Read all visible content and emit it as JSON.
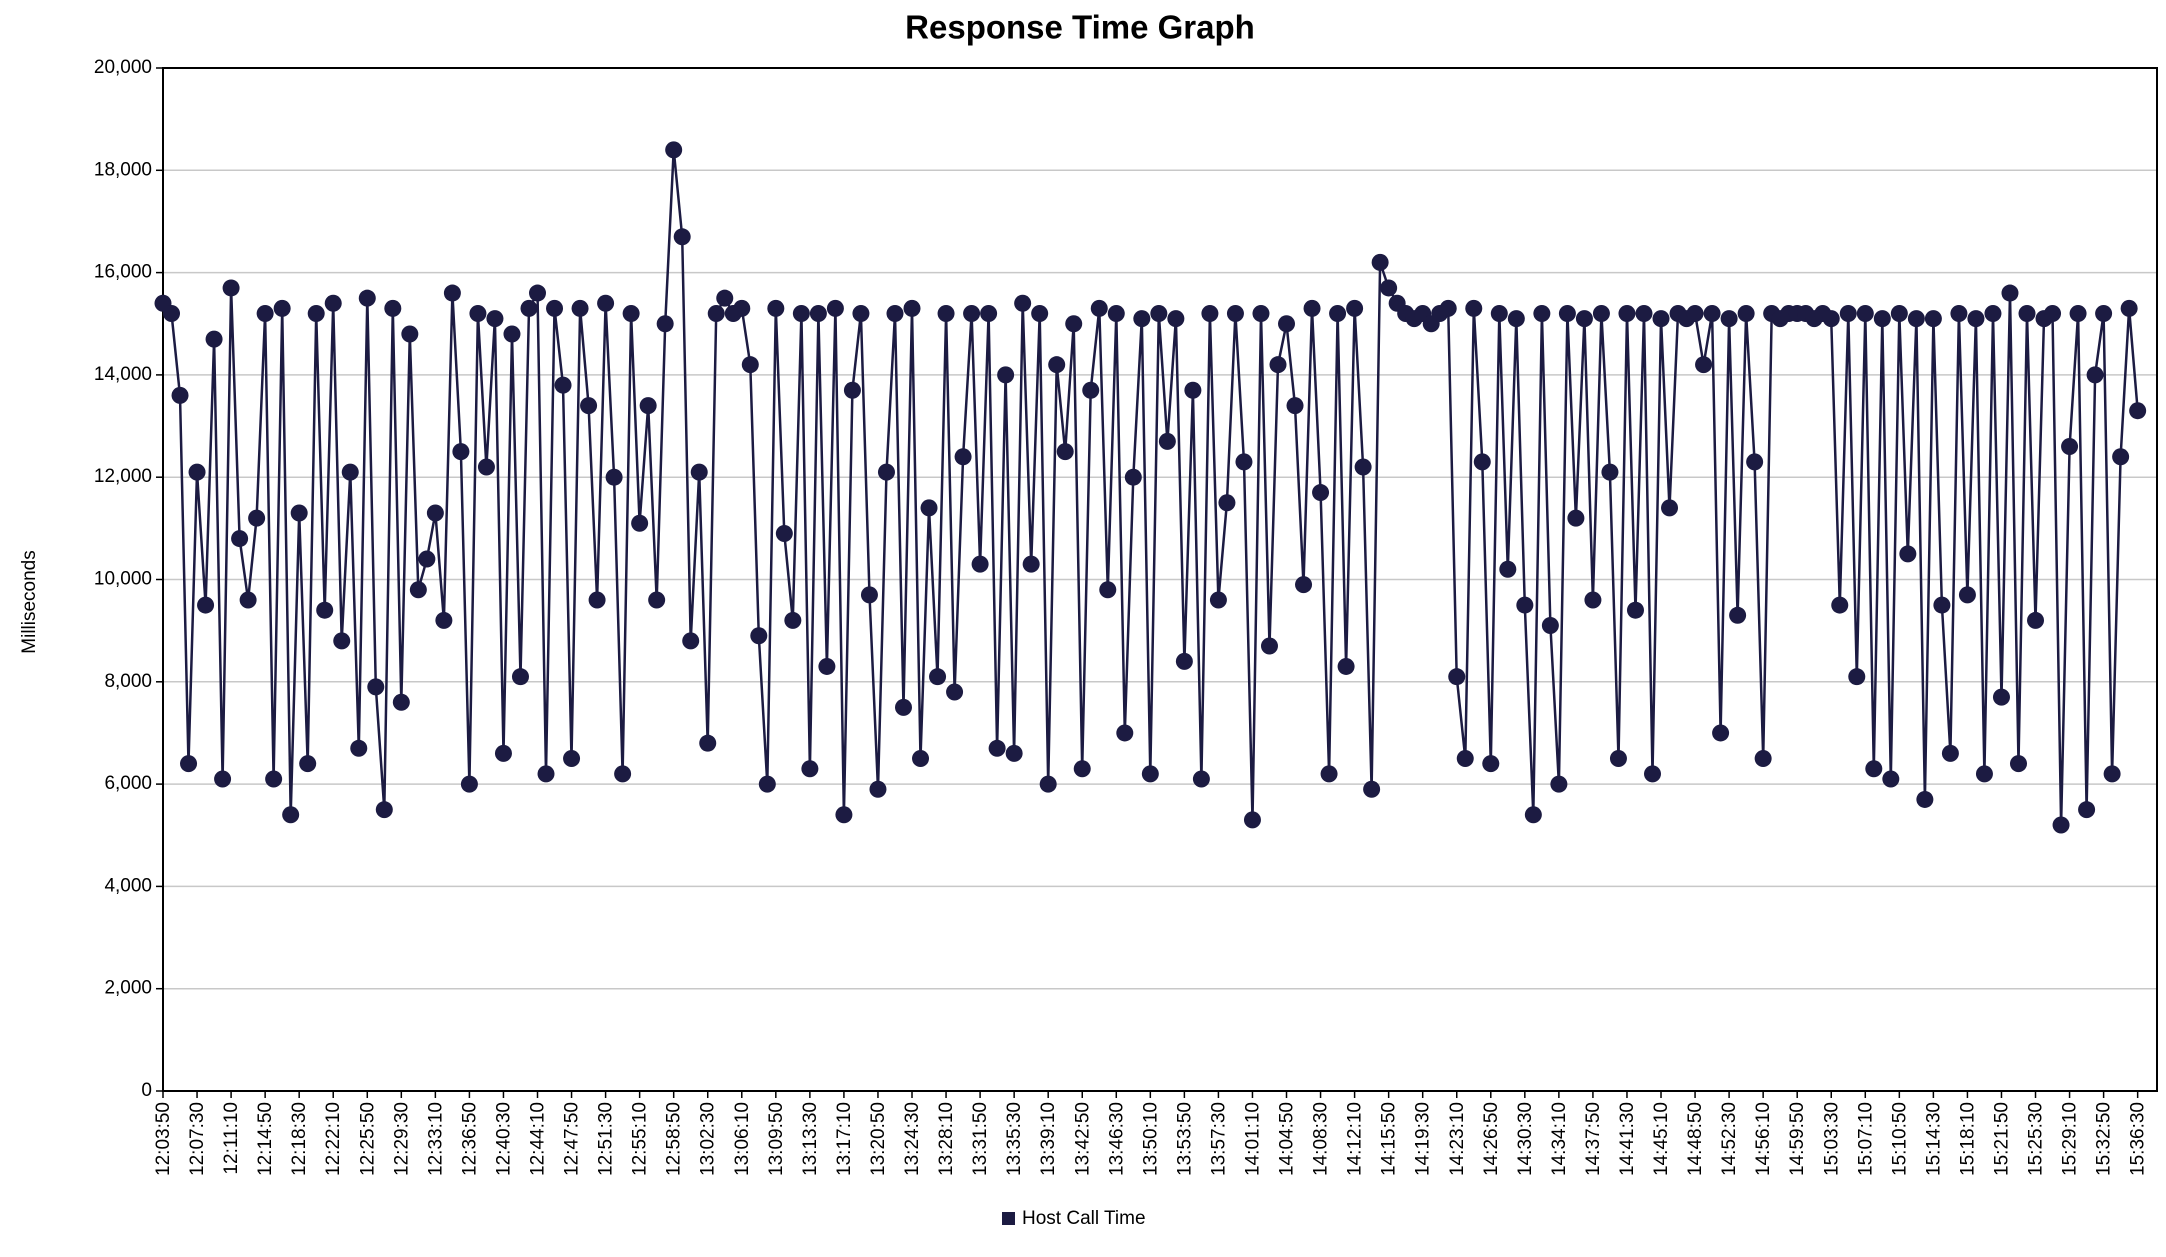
{
  "chart_data": {
    "type": "line",
    "title": "Response Time Graph",
    "ylabel": "Milliseconds",
    "grid": true,
    "legend": "bottom",
    "markers": true,
    "ylim": [
      0,
      20000
    ],
    "yticks": [
      0,
      {
        "value": 2000,
        "label": "2,000"
      },
      {
        "value": 4000,
        "label": "4,000"
      },
      {
        "value": 6000,
        "label": "6,000"
      },
      {
        "value": 8000,
        "label": "8,000"
      },
      {
        "value": 10000,
        "label": "10,000"
      },
      {
        "value": 12000,
        "label": "12,000"
      },
      {
        "value": 14000,
        "label": "14,000"
      },
      {
        "value": 16000,
        "label": "16,000"
      },
      {
        "value": 18000,
        "label": "18,000"
      },
      {
        "value": 20000,
        "label": "20,000"
      }
    ],
    "xlim": [
      "12:03:50",
      "15:38:35"
    ],
    "xticks": [
      "12:03:50",
      "12:07:30",
      "12:11:10",
      "12:14:50",
      "12:18:30",
      "12:22:10",
      "12:25:50",
      "12:29:30",
      "12:33:10",
      "12:36:50",
      "12:40:30",
      "12:44:10",
      "12:47:50",
      "12:51:30",
      "12:55:10",
      "12:58:50",
      "13:02:30",
      "13:06:10",
      "13:09:50",
      "13:13:30",
      "13:17:10",
      "13:20:50",
      "13:24:30",
      "13:28:10",
      "13:31:50",
      "13:35:30",
      "13:39:10",
      "13:42:50",
      "13:46:30",
      "13:50:10",
      "13:53:50",
      "13:57:30",
      "14:01:10",
      "14:04:50",
      "14:08:30",
      "14:12:10",
      "14:15:50",
      "14:19:30",
      "14:23:10",
      "14:26:50",
      "14:30:30",
      "14:34:10",
      "14:37:50",
      "14:41:30",
      "14:45:10",
      "14:48:50",
      "14:52:30",
      "14:56:10",
      "14:59:50",
      "15:03:30",
      "15:07:10",
      "15:10:50",
      "15:14:30",
      "15:18:10",
      "15:21:50",
      "15:25:30",
      "15:29:10",
      "15:32:50",
      "15:36:30"
    ],
    "series": [
      {
        "name": "Host Call Time",
        "color": "#1c1b42",
        "x": [
          "12:03:50",
          "12:04:45",
          "12:05:40",
          "12:06:35",
          "12:07:30",
          "12:08:25",
          "12:09:20",
          "12:10:15",
          "12:11:10",
          "12:12:05",
          "12:13:00",
          "12:13:55",
          "12:14:50",
          "12:15:45",
          "12:16:40",
          "12:17:35",
          "12:18:30",
          "12:19:25",
          "12:20:20",
          "12:21:15",
          "12:22:10",
          "12:23:05",
          "12:24:00",
          "12:24:55",
          "12:25:50",
          "12:26:45",
          "12:27:40",
          "12:28:35",
          "12:29:30",
          "12:30:25",
          "12:31:20",
          "12:32:15",
          "12:33:10",
          "12:34:05",
          "12:35:00",
          "12:35:55",
          "12:36:50",
          "12:37:45",
          "12:38:40",
          "12:39:35",
          "12:40:30",
          "12:41:25",
          "12:42:20",
          "12:43:15",
          "12:44:10",
          "12:45:05",
          "12:46:00",
          "12:46:55",
          "12:47:50",
          "12:48:45",
          "12:49:40",
          "12:50:35",
          "12:51:30",
          "12:52:25",
          "12:53:20",
          "12:54:15",
          "12:55:10",
          "12:56:05",
          "12:57:00",
          "12:57:55",
          "12:58:50",
          "12:59:45",
          "13:00:40",
          "13:01:35",
          "13:02:30",
          "13:03:25",
          "13:04:20",
          "13:05:15",
          "13:06:10",
          "13:07:05",
          "13:08:00",
          "13:08:55",
          "13:09:50",
          "13:10:45",
          "13:11:40",
          "13:12:35",
          "13:13:30",
          "13:14:25",
          "13:15:20",
          "13:16:15",
          "13:17:10",
          "13:18:05",
          "13:19:00",
          "13:19:55",
          "13:20:50",
          "13:21:45",
          "13:22:40",
          "13:23:35",
          "13:24:30",
          "13:25:25",
          "13:26:20",
          "13:27:15",
          "13:28:10",
          "13:29:05",
          "13:30:00",
          "13:30:55",
          "13:31:50",
          "13:32:45",
          "13:33:40",
          "13:34:35",
          "13:35:30",
          "13:36:25",
          "13:37:20",
          "13:38:15",
          "13:39:10",
          "13:40:05",
          "13:41:00",
          "13:41:55",
          "13:42:50",
          "13:43:45",
          "13:44:40",
          "13:45:35",
          "13:46:30",
          "13:47:25",
          "13:48:20",
          "13:49:15",
          "13:50:10",
          "13:51:05",
          "13:52:00",
          "13:52:55",
          "13:53:50",
          "13:54:45",
          "13:55:40",
          "13:56:35",
          "13:57:30",
          "13:58:25",
          "13:59:20",
          "14:00:15",
          "14:01:10",
          "14:02:05",
          "14:03:00",
          "14:03:55",
          "14:04:50",
          "14:05:45",
          "14:06:40",
          "14:07:35",
          "14:08:30",
          "14:09:25",
          "14:10:20",
          "14:11:15",
          "14:12:10",
          "14:13:05",
          "14:14:00",
          "14:14:55",
          "14:15:50",
          "14:16:45",
          "14:17:40",
          "14:18:35",
          "14:19:30",
          "14:20:25",
          "14:21:20",
          "14:22:15",
          "14:23:10",
          "14:24:05",
          "14:25:00",
          "14:25:55",
          "14:26:50",
          "14:27:45",
          "14:28:40",
          "14:29:35",
          "14:30:30",
          "14:31:25",
          "14:32:20",
          "14:33:15",
          "14:34:10",
          "14:35:05",
          "14:36:00",
          "14:36:55",
          "14:37:50",
          "14:38:45",
          "14:39:40",
          "14:40:35",
          "14:41:30",
          "14:42:25",
          "14:43:20",
          "14:44:15",
          "14:45:10",
          "14:46:05",
          "14:47:00",
          "14:47:55",
          "14:48:50",
          "14:49:45",
          "14:50:40",
          "14:51:35",
          "14:52:30",
          "14:53:25",
          "14:54:20",
          "14:55:15",
          "14:56:10",
          "14:57:05",
          "14:58:00",
          "14:58:55",
          "14:59:50",
          "15:00:45",
          "15:01:40",
          "15:02:35",
          "15:03:30",
          "15:04:25",
          "15:05:20",
          "15:06:15",
          "15:07:10",
          "15:08:05",
          "15:09:00",
          "15:09:55",
          "15:10:50",
          "15:11:45",
          "15:12:40",
          "15:13:35",
          "15:14:30",
          "15:15:25",
          "15:16:20",
          "15:17:15",
          "15:18:10",
          "15:19:05",
          "15:20:00",
          "15:20:55",
          "15:21:50",
          "15:22:45",
          "15:23:40",
          "15:24:35",
          "15:25:30",
          "15:26:25",
          "15:27:20",
          "15:28:15",
          "15:29:10",
          "15:30:05",
          "15:31:00",
          "15:31:55",
          "15:32:50",
          "15:33:45",
          "15:34:40",
          "15:35:35",
          "15:36:30"
        ],
        "values": [
          15400,
          15200,
          13600,
          6400,
          12100,
          9500,
          14700,
          6100,
          15700,
          10800,
          9600,
          11200,
          15200,
          6100,
          15300,
          5400,
          11300,
          6400,
          15200,
          9400,
          15400,
          8800,
          12100,
          6700,
          15500,
          7900,
          5500,
          15300,
          7600,
          14800,
          9800,
          10400,
          11300,
          9200,
          15600,
          12500,
          6000,
          15200,
          12200,
          15100,
          6600,
          14800,
          8100,
          15300,
          15600,
          6200,
          15300,
          13800,
          6500,
          15300,
          13400,
          9600,
          15400,
          12000,
          6200,
          15200,
          11100,
          13400,
          9600,
          15000,
          18400,
          16700,
          8800,
          12100,
          6800,
          15200,
          15500,
          15200,
          15300,
          14200,
          8900,
          6000,
          15300,
          10900,
          9200,
          15200,
          6300,
          15200,
          8300,
          15300,
          5400,
          13700,
          15200,
          9700,
          5900,
          12100,
          15200,
          7500,
          15300,
          6500,
          11400,
          8100,
          15200,
          7800,
          12400,
          15200,
          10300,
          15200,
          6700,
          14000,
          6600,
          15400,
          10300,
          15200,
          6000,
          14200,
          12500,
          15000,
          6300,
          13700,
          15300,
          9800,
          15200,
          7000,
          12000,
          15100,
          6200,
          15200,
          12700,
          15100,
          8400,
          13700,
          6100,
          15200,
          9600,
          11500,
          15200,
          12300,
          5300,
          15200,
          8700,
          14200,
          15000,
          13400,
          9900,
          15300,
          11700,
          6200,
          15200,
          8300,
          15300,
          12200,
          5900,
          16200,
          15700,
          15400,
          15200,
          15100,
          15200,
          15000,
          15200,
          15300,
          8100,
          6500,
          15300,
          12300,
          6400,
          15200,
          10200,
          15100,
          9500,
          5400,
          15200,
          9100,
          6000,
          15200,
          11200,
          15100,
          9600,
          15200,
          12100,
          6500,
          15200,
          9400,
          15200,
          6200,
          15100,
          11400,
          15200,
          15100,
          15200,
          14200,
          15200,
          7000,
          15100,
          9300,
          15200,
          12300,
          6500,
          15200,
          15100,
          15200,
          15200,
          15200,
          15100,
          15200,
          15100,
          9500,
          15200,
          8100,
          15200,
          6300,
          15100,
          6100,
          15200,
          10500,
          15100,
          5700,
          15100,
          9500,
          6600,
          15200,
          9700,
          15100,
          6200,
          15200,
          7700,
          15600,
          6400,
          15200,
          9200,
          15100,
          15200,
          5200,
          12600,
          15200,
          5500,
          14000,
          15200,
          6200,
          12400,
          15300,
          13300
        ]
      }
    ]
  }
}
